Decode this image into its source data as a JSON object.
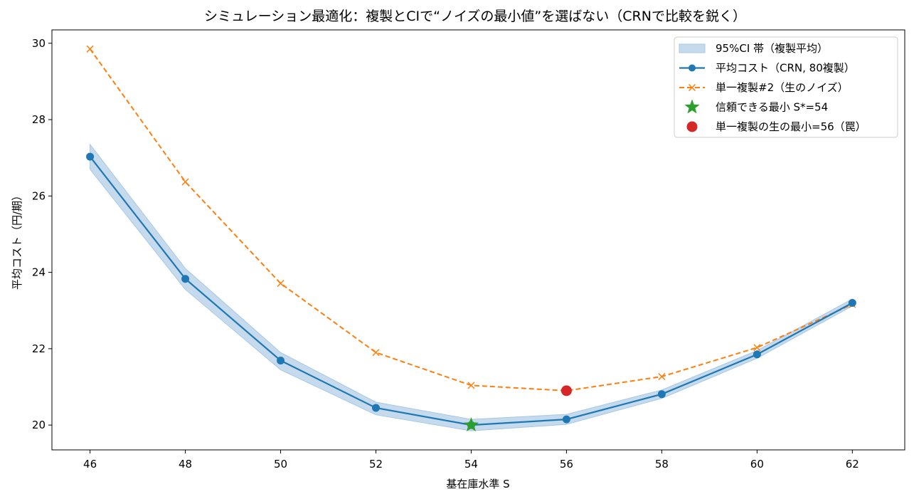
{
  "chart_data": {
    "type": "line",
    "title": "シミュレーション最適化：複製とCIで“ノイズの最小値”を選ばない（CRNで比較を鋭く）",
    "xlabel": "基在庫水準 S",
    "ylabel": "平均コスト（円/期）",
    "xlim": [
      45.2,
      63.1
    ],
    "ylim": [
      19.35,
      30.35
    ],
    "x_ticks": [
      46,
      48,
      50,
      52,
      54,
      56,
      58,
      60,
      62
    ],
    "y_ticks": [
      20,
      22,
      24,
      26,
      28,
      30
    ],
    "grid": false,
    "legend_position": "top-right",
    "x": [
      46,
      48,
      50,
      52,
      54,
      56,
      58,
      60,
      62
    ],
    "ci_band": {
      "name": "95%CI 帯（複製平均）",
      "color": "#a6c8e4",
      "lower": [
        26.7,
        23.55,
        21.45,
        20.27,
        19.85,
        20.02,
        20.7,
        21.75,
        23.12
      ],
      "upper": [
        27.35,
        24.1,
        21.9,
        20.6,
        20.15,
        20.28,
        20.92,
        21.95,
        23.3
      ]
    },
    "series": [
      {
        "name": "平均コスト（CRN, 80複製）",
        "color": "#1f77b4",
        "style": "solid-circle",
        "values": [
          27.03,
          23.83,
          21.69,
          20.45,
          20.0,
          20.15,
          20.81,
          21.85,
          23.2
        ]
      },
      {
        "name": "単一複製#2（生のノイズ）",
        "color": "#ff7f0e",
        "style": "dashed-x",
        "values": [
          29.85,
          26.37,
          23.71,
          21.9,
          21.04,
          20.9,
          21.27,
          22.03,
          23.16
        ]
      }
    ],
    "markers": [
      {
        "name": "信頼できる最小 S*=54",
        "x": 54,
        "y": 20.0,
        "color": "#2ca02c",
        "shape": "star"
      },
      {
        "name": "単一複製の生の最小=56（罠）",
        "x": 56,
        "y": 20.9,
        "color": "#d62728",
        "shape": "circle"
      }
    ]
  }
}
